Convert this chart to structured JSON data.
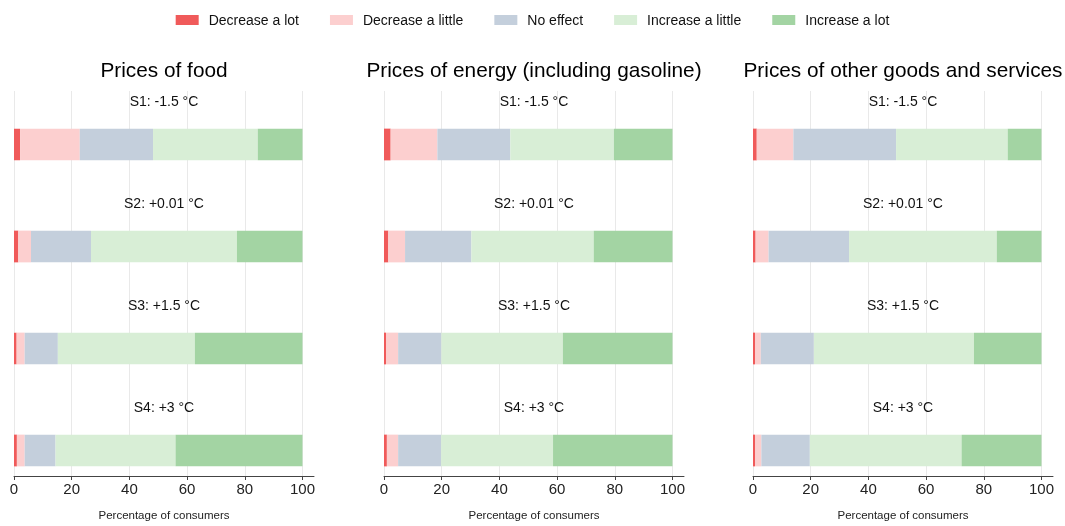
{
  "chart_data": [
    {
      "type": "bar",
      "orientation": "horizontal",
      "stacked": true,
      "title": "Prices of food",
      "xlabel": "Percentage of consumers",
      "categories": [
        "S1: -1.5 °C",
        "S2: +0.01 °C",
        "S3: +1.5 °C",
        "S4: +3 °C"
      ],
      "xlim": [
        0,
        104
      ],
      "xticks": [
        0,
        20,
        40,
        60,
        80,
        100
      ],
      "grid": "x",
      "legend": "top",
      "series": [
        {
          "name": "Decrease a lot",
          "color": "#f05a5a",
          "values": [
            2.1,
            1.5,
            0.9,
            1.0
          ]
        },
        {
          "name": "Decrease a little",
          "color": "#fccfcf",
          "values": [
            20.7,
            4.4,
            2.8,
            2.7
          ]
        },
        {
          "name": "No effect",
          "color": "#c4cfdc",
          "values": [
            25.4,
            20.8,
            11.5,
            10.7
          ]
        },
        {
          "name": "Increase a little",
          "color": "#d8eed6",
          "values": [
            36.3,
            50.6,
            47.5,
            41.6
          ]
        },
        {
          "name": "Increase a lot",
          "color": "#a3d4a3",
          "values": [
            15.5,
            22.7,
            37.3,
            44.0
          ]
        }
      ]
    },
    {
      "type": "bar",
      "orientation": "horizontal",
      "stacked": true,
      "title": "Prices of energy (including gasoline)",
      "xlabel": "Percentage of consumers",
      "categories": [
        "S1: -1.5 °C",
        "S2: +0.01 °C",
        "S3: +1.5 °C",
        "S4: +3 °C"
      ],
      "xlim": [
        0,
        104
      ],
      "xticks": [
        0,
        20,
        40,
        60,
        80,
        100
      ],
      "grid": "x",
      "series": [
        {
          "color": "#f05a5a",
          "values": [
            2.3,
            1.5,
            0.7,
            1.0
          ]
        },
        {
          "color": "#fccfcf",
          "values": [
            16.2,
            5.8,
            4.2,
            3.9
          ]
        },
        {
          "color": "#c4cfdc",
          "values": [
            25.3,
            23.0,
            15.0,
            14.9
          ]
        },
        {
          "color": "#d8eed6",
          "values": [
            35.9,
            42.4,
            42.1,
            38.8
          ]
        },
        {
          "color": "#a3d4a3",
          "values": [
            20.3,
            27.3,
            38.0,
            41.4
          ]
        }
      ]
    },
    {
      "type": "bar",
      "orientation": "horizontal",
      "stacked": true,
      "title": "Prices of other goods and services",
      "xlabel": "Percentage of consumers",
      "categories": [
        "S1: -1.5 °C",
        "S2: +0.01 °C",
        "S3: +1.5 °C",
        "S4: +3 °C"
      ],
      "xlim": [
        0,
        104
      ],
      "xticks": [
        0,
        20,
        40,
        60,
        80,
        100
      ],
      "grid": "x",
      "series": [
        {
          "color": "#f05a5a",
          "values": [
            1.3,
            0.9,
            0.7,
            0.7
          ]
        },
        {
          "color": "#fccfcf",
          "values": [
            12.7,
            4.5,
            2.0,
            2.2
          ]
        },
        {
          "color": "#c4cfdc",
          "values": [
            35.6,
            27.9,
            18.4,
            16.8
          ]
        },
        {
          "color": "#d8eed6",
          "values": [
            38.7,
            51.2,
            55.5,
            52.6
          ]
        },
        {
          "color": "#a3d4a3",
          "values": [
            11.7,
            15.5,
            23.4,
            27.7
          ]
        }
      ]
    }
  ]
}
